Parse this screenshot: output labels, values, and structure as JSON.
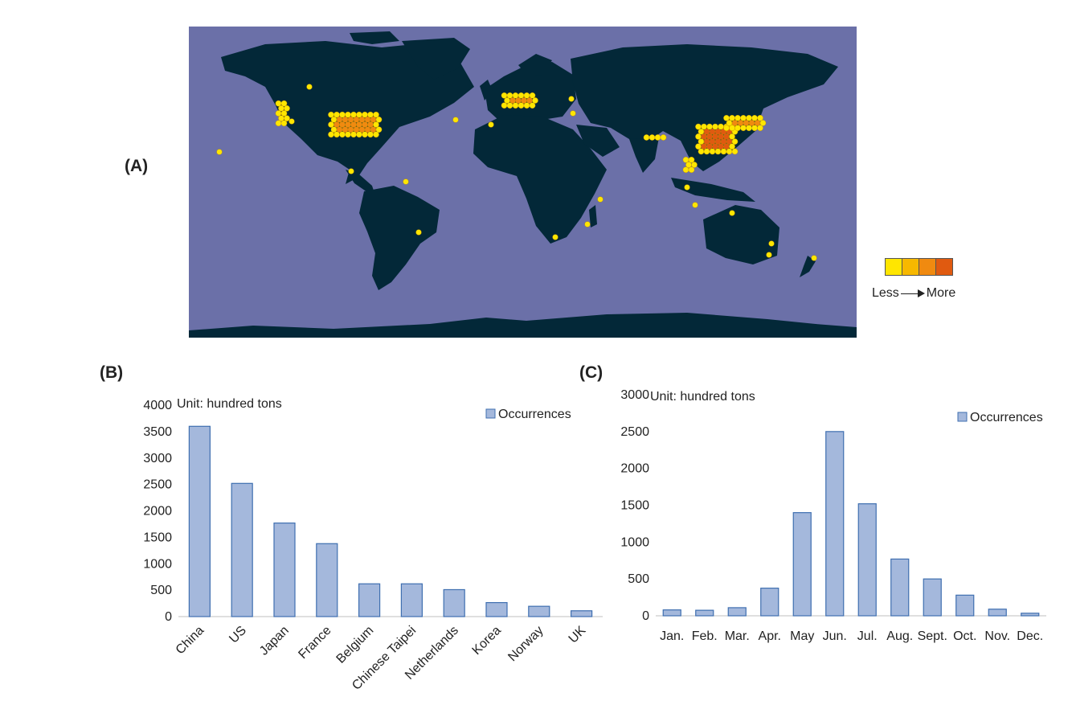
{
  "panels": {
    "a": "(A)",
    "b": "(B)",
    "c": "(C)"
  },
  "map": {
    "ocean_color": "#6b70a8",
    "land_color": "#032838",
    "heat_colors": [
      "#ffe600",
      "#f7b800",
      "#f08a10",
      "#e05a10"
    ],
    "legend_less": "Less",
    "legend_more": "More"
  },
  "chart_data": [
    {
      "type": "bar",
      "title": "",
      "unit_label": "Unit: hundred tons",
      "legend": "Occurrences",
      "legend_position": "top-right",
      "categories": [
        "China",
        "US",
        "Japan",
        "France",
        "Belgium",
        "Chinese Taipei",
        "Netherlands",
        "Korea",
        "Norway",
        "UK"
      ],
      "values": [
        3600,
        2520,
        1770,
        1380,
        620,
        620,
        510,
        265,
        195,
        110
      ],
      "ylim": [
        0,
        4000
      ],
      "yticks": [
        0,
        500,
        1000,
        1500,
        2000,
        2500,
        3000,
        3500,
        4000
      ],
      "bar_color": "#a4b8dc",
      "bar_edge": "#3f6fb0",
      "grid": false
    },
    {
      "type": "bar",
      "title": "",
      "unit_label": "Unit: hundred tons",
      "legend": "Occurrences",
      "legend_position": "top-right",
      "categories": [
        "Jan.",
        "Feb.",
        "Mar.",
        "Apr.",
        "May",
        "Jun.",
        "Jul.",
        "Aug.",
        "Sept.",
        "Oct.",
        "Nov.",
        "Dec."
      ],
      "values": [
        80,
        75,
        110,
        375,
        1400,
        2500,
        1520,
        770,
        500,
        280,
        90,
        35
      ],
      "ylim": [
        0,
        3000
      ],
      "yticks": [
        0,
        500,
        1000,
        1500,
        2000,
        2500,
        3000
      ],
      "bar_color": "#a4b8dc",
      "bar_edge": "#3f6fb0",
      "grid": false
    }
  ]
}
